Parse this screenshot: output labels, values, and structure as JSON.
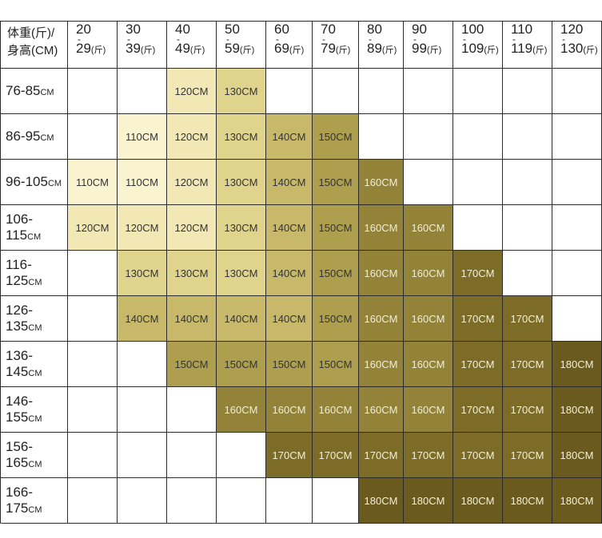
{
  "corner": {
    "line1": "体重(斤)/",
    "line2": "身高(CM)"
  },
  "unit": "(斤)",
  "row_unit": "CM",
  "weight_columns": [
    {
      "hi": "20",
      "lo": "29"
    },
    {
      "hi": "30",
      "lo": "39"
    },
    {
      "hi": "40",
      "lo": "49"
    },
    {
      "hi": "50",
      "lo": "59"
    },
    {
      "hi": "60",
      "lo": "69"
    },
    {
      "hi": "70",
      "lo": "79"
    },
    {
      "hi": "80",
      "lo": "89"
    },
    {
      "hi": "90",
      "lo": "99"
    },
    {
      "hi": "100",
      "lo": "109"
    },
    {
      "hi": "110",
      "lo": "119"
    },
    {
      "hi": "120",
      "lo": "130"
    }
  ],
  "colors": {
    "110CM": "#faf3cf",
    "120CM": "#f2e8b5",
    "130CM": "#e0d38c",
    "140CM": "#c8b96a",
    "150CM": "#ad9f4e",
    "160CM": "#938338",
    "170CM": "#7c6c27",
    "180CM": "#6a5a1e"
  },
  "rows": [
    {
      "height": "76-85",
      "cells": [
        "",
        "",
        "120CM",
        "130CM",
        "",
        "",
        "",
        "",
        "",
        "",
        ""
      ]
    },
    {
      "height": "86-95",
      "cells": [
        "",
        "110CM",
        "120CM",
        "130CM",
        "140CM",
        "150CM",
        "",
        "",
        "",
        "",
        ""
      ]
    },
    {
      "height": "96-105",
      "cells": [
        "110CM",
        "110CM",
        "120CM",
        "130CM",
        "140CM",
        "150CM",
        "160CM",
        "",
        "",
        "",
        ""
      ]
    },
    {
      "height": "106-115",
      "cells": [
        "120CM",
        "120CM",
        "120CM",
        "130CM",
        "140CM",
        "150CM",
        "160CM",
        "160CM",
        "",
        "",
        ""
      ]
    },
    {
      "height": "116-125",
      "cells": [
        "",
        "130CM",
        "130CM",
        "130CM",
        "140CM",
        "150CM",
        "160CM",
        "160CM",
        "170CM",
        "",
        ""
      ]
    },
    {
      "height": "126-135",
      "cells": [
        "",
        "140CM",
        "140CM",
        "140CM",
        "140CM",
        "150CM",
        "160CM",
        "160CM",
        "170CM",
        "170CM",
        ""
      ]
    },
    {
      "height": "136-145",
      "cells": [
        "",
        "",
        "150CM",
        "150CM",
        "150CM",
        "150CM",
        "160CM",
        "160CM",
        "170CM",
        "170CM",
        "180CM"
      ]
    },
    {
      "height": "146-155",
      "cells": [
        "",
        "",
        "",
        "160CM",
        "160CM",
        "160CM",
        "160CM",
        "160CM",
        "170CM",
        "170CM",
        "180CM"
      ]
    },
    {
      "height": "156-165",
      "cells": [
        "",
        "",
        "",
        "",
        "170CM",
        "170CM",
        "170CM",
        "170CM",
        "170CM",
        "170CM",
        "180CM"
      ]
    },
    {
      "height": "166-175",
      "cells": [
        "",
        "",
        "",
        "",
        "",
        "",
        "180CM",
        "180CM",
        "180CM",
        "180CM",
        "180CM"
      ]
    }
  ]
}
